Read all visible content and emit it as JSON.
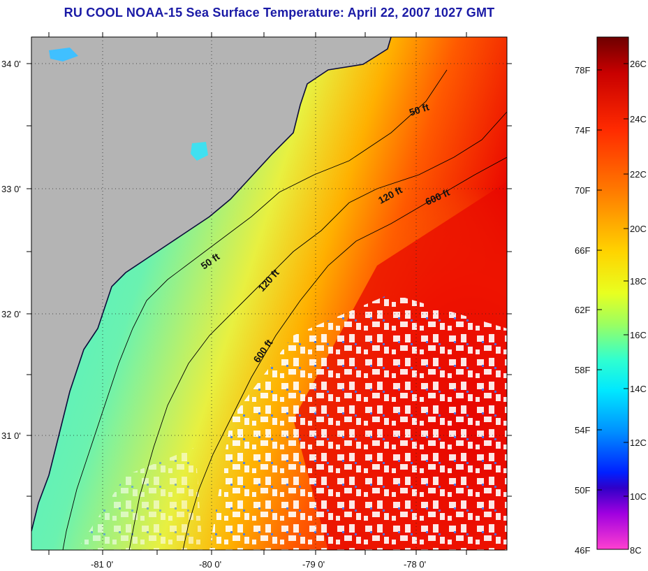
{
  "title": "RU COOL  NOAA-15  Sea Surface Temperature:  April 22, 2007 1027 GMT",
  "map": {
    "lat_labels": [
      "34 0'",
      "33 0'",
      "32 0'",
      "31 0'"
    ],
    "lon_labels": [
      "-81 0'",
      "-80 0'",
      "-79 0'",
      "-78 0'"
    ],
    "contour_labels": [
      "50 ft",
      "120 ft",
      "600 ft",
      "50 ft",
      "120 ft",
      "600 ft"
    ],
    "colors": {
      "land": "#b4b4b4",
      "cloud": "#ffffff",
      "coast": "#0a0a3a"
    }
  },
  "colorbar": {
    "fahrenheit_labels": [
      "78F",
      "74F",
      "70F",
      "66F",
      "62F",
      "58F",
      "54F",
      "50F",
      "46F"
    ],
    "celsius_labels": [
      "26C",
      "24C",
      "22C",
      "20C",
      "18C",
      "16C",
      "14C",
      "12C",
      "10C",
      "8C"
    ],
    "gradient": [
      "#6e0000",
      "#c80000",
      "#ff2a00",
      "#ff7a00",
      "#ffd400",
      "#e8ff20",
      "#9cff60",
      "#30ffd0",
      "#00e8ff",
      "#0090ff",
      "#0020ff",
      "#3000c8",
      "#a000e0",
      "#ff40d0"
    ]
  }
}
